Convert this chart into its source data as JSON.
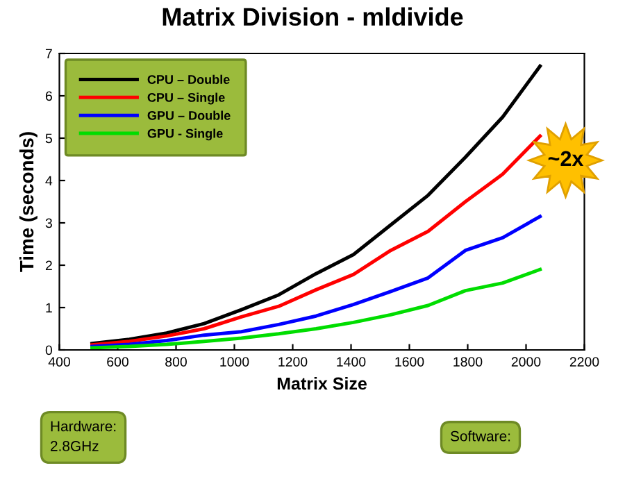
{
  "chart_data": {
    "type": "line",
    "title": "Matrix Division - mldivide",
    "xlabel": "Matrix Size",
    "ylabel": "Time (seconds)",
    "xlim": [
      400,
      2200
    ],
    "xticks": [
      400,
      600,
      800,
      1000,
      1200,
      1400,
      1600,
      1800,
      2000,
      2200
    ],
    "ylim": [
      0,
      7
    ],
    "yticks": [
      0,
      1,
      2,
      3,
      4,
      5,
      6,
      7
    ],
    "grid": false,
    "legend": "top left",
    "marker": "none",
    "line_style": "solid",
    "series": [
      {
        "name": "CPU – Double",
        "color": "#000000",
        "x": [
          512,
          640,
          768,
          896,
          1024,
          1152,
          1280,
          1408,
          1536,
          1664,
          1792,
          1920,
          2048
        ],
        "values": [
          0.15,
          0.25,
          0.4,
          0.62,
          0.95,
          1.3,
          1.8,
          2.25,
          2.95,
          3.65,
          4.55,
          5.5,
          6.7
        ]
      },
      {
        "name": "CPU – Single",
        "color": "#ff0000",
        "x": [
          512,
          640,
          768,
          896,
          1024,
          1152,
          1280,
          1408,
          1536,
          1664,
          1792,
          1920,
          2048
        ],
        "values": [
          0.12,
          0.2,
          0.33,
          0.5,
          0.78,
          1.03,
          1.42,
          1.78,
          2.35,
          2.8,
          3.5,
          4.15,
          5.05
        ]
      },
      {
        "name": "GPU – Double",
        "color": "#0000ff",
        "x": [
          512,
          640,
          768,
          896,
          1024,
          1152,
          1280,
          1408,
          1536,
          1664,
          1792,
          1920,
          2048
        ],
        "values": [
          0.08,
          0.13,
          0.22,
          0.35,
          0.43,
          0.6,
          0.8,
          1.07,
          1.38,
          1.7,
          2.35,
          2.65,
          3.15
        ]
      },
      {
        "name": "GPU - Single",
        "color": "#00dd00",
        "x": [
          512,
          640,
          768,
          896,
          1024,
          1152,
          1280,
          1408,
          1536,
          1664,
          1792,
          1920,
          2048
        ],
        "values": [
          0.05,
          0.08,
          0.13,
          0.2,
          0.28,
          0.38,
          0.5,
          0.65,
          0.83,
          1.05,
          1.4,
          1.58,
          1.9
        ]
      }
    ],
    "annotations": [
      "~2x",
      "Hardware:\n2.8GHz",
      "Software:"
    ]
  }
}
